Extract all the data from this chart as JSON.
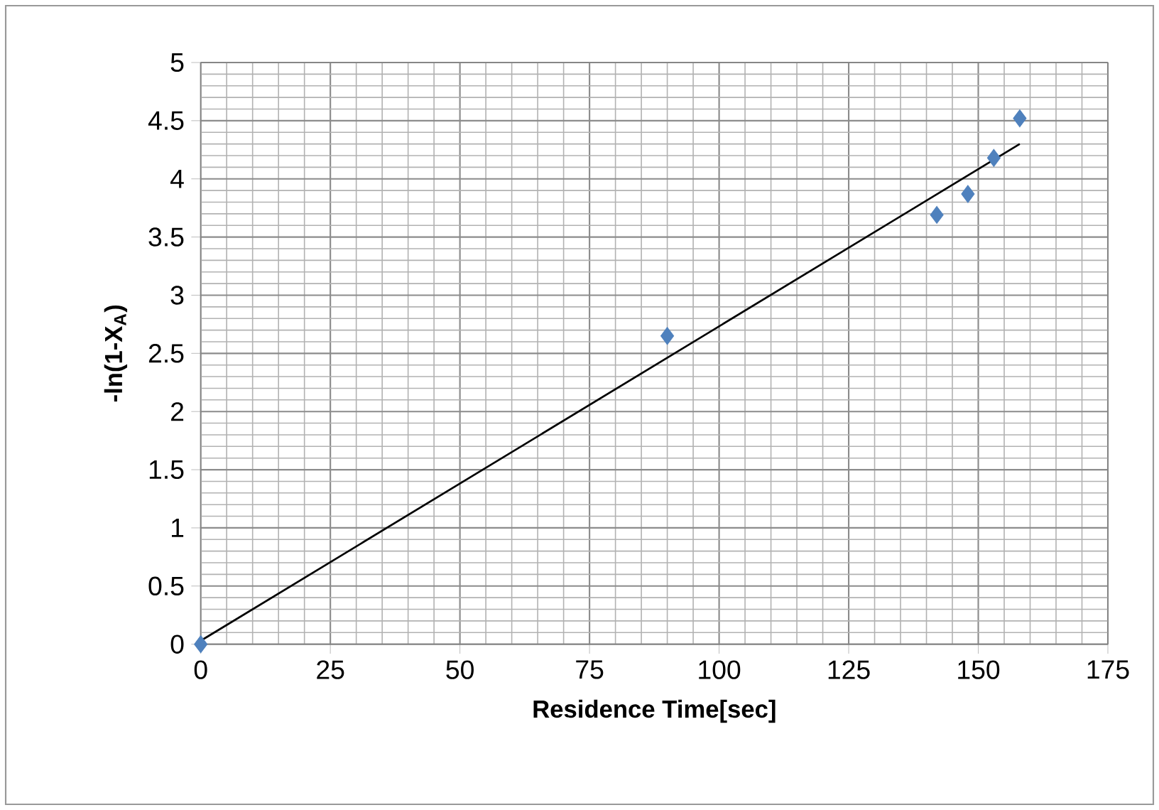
{
  "chart_data": {
    "type": "scatter",
    "xlabel": "Residence Time[sec]",
    "ylabel": "-ln(1-X$_{A}$)",
    "xlim": [
      0,
      175
    ],
    "xticks": [
      0,
      25,
      50,
      75,
      100,
      125,
      150,
      175
    ],
    "ylim": [
      0,
      5
    ],
    "yticks": [
      0,
      0.5,
      1,
      1.5,
      2,
      2.5,
      3,
      3.5,
      4,
      4.5,
      5
    ],
    "grid": true,
    "series": [
      {
        "marker": "diamond",
        "color": "#4f81bd",
        "x": [
          0,
          90,
          142,
          148,
          153,
          158
        ],
        "values": [
          0,
          2.65,
          3.69,
          3.87,
          4.18,
          4.52
        ]
      },
      {
        "type": "line",
        "marker": "none",
        "line_style": "solid",
        "color": "#000000",
        "x": [
          0,
          158
        ],
        "values": [
          0.03,
          4.3
        ]
      }
    ]
  }
}
